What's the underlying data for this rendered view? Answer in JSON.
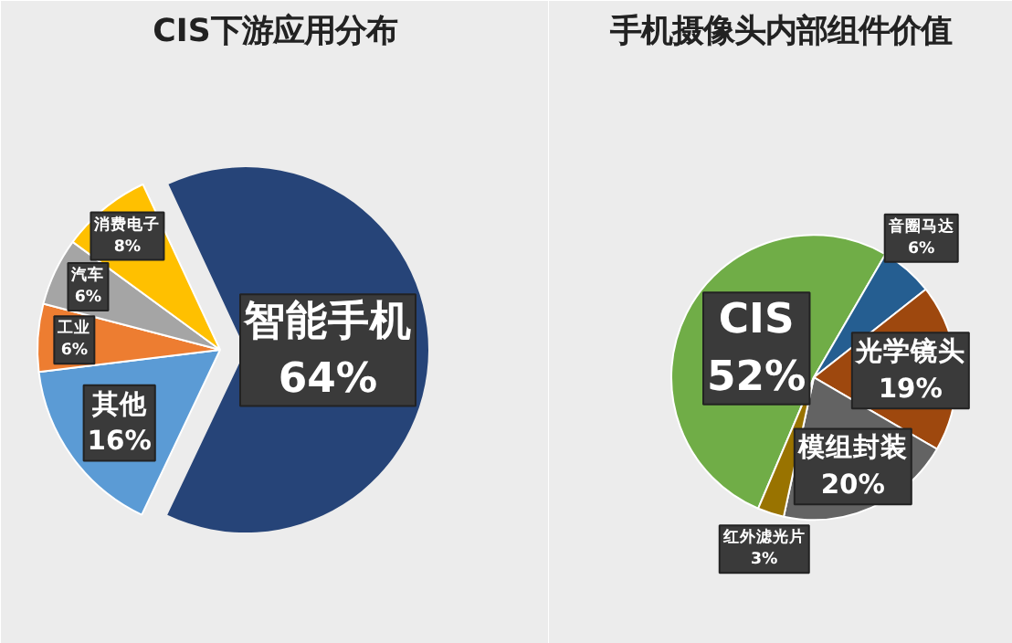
{
  "chart_data": [
    {
      "type": "pie",
      "title": "CIS下游应用分布",
      "categories": [
        "智能手机",
        "其他",
        "工业",
        "汽车",
        "消费电子"
      ],
      "values": [
        64,
        16,
        6,
        6,
        8
      ],
      "value_labels": [
        "64%",
        "16%",
        "6%",
        "6%",
        "8%"
      ],
      "colors": [
        "#264478",
        "#5b9bd5",
        "#ed7d31",
        "#a5a5a5",
        "#ffc000"
      ]
    },
    {
      "type": "pie",
      "title": "手机摄像头内部组件价值",
      "categories": [
        "CIS",
        "音圈马达",
        "光学镜头",
        "模组封装",
        "红外滤光片"
      ],
      "values": [
        52,
        6,
        19,
        20,
        3
      ],
      "value_labels": [
        "52%",
        "6%",
        "19%",
        "20%",
        "3%"
      ],
      "colors": [
        "#70ad47",
        "#255e91",
        "#9e480e",
        "#636363",
        "#997300"
      ]
    }
  ]
}
